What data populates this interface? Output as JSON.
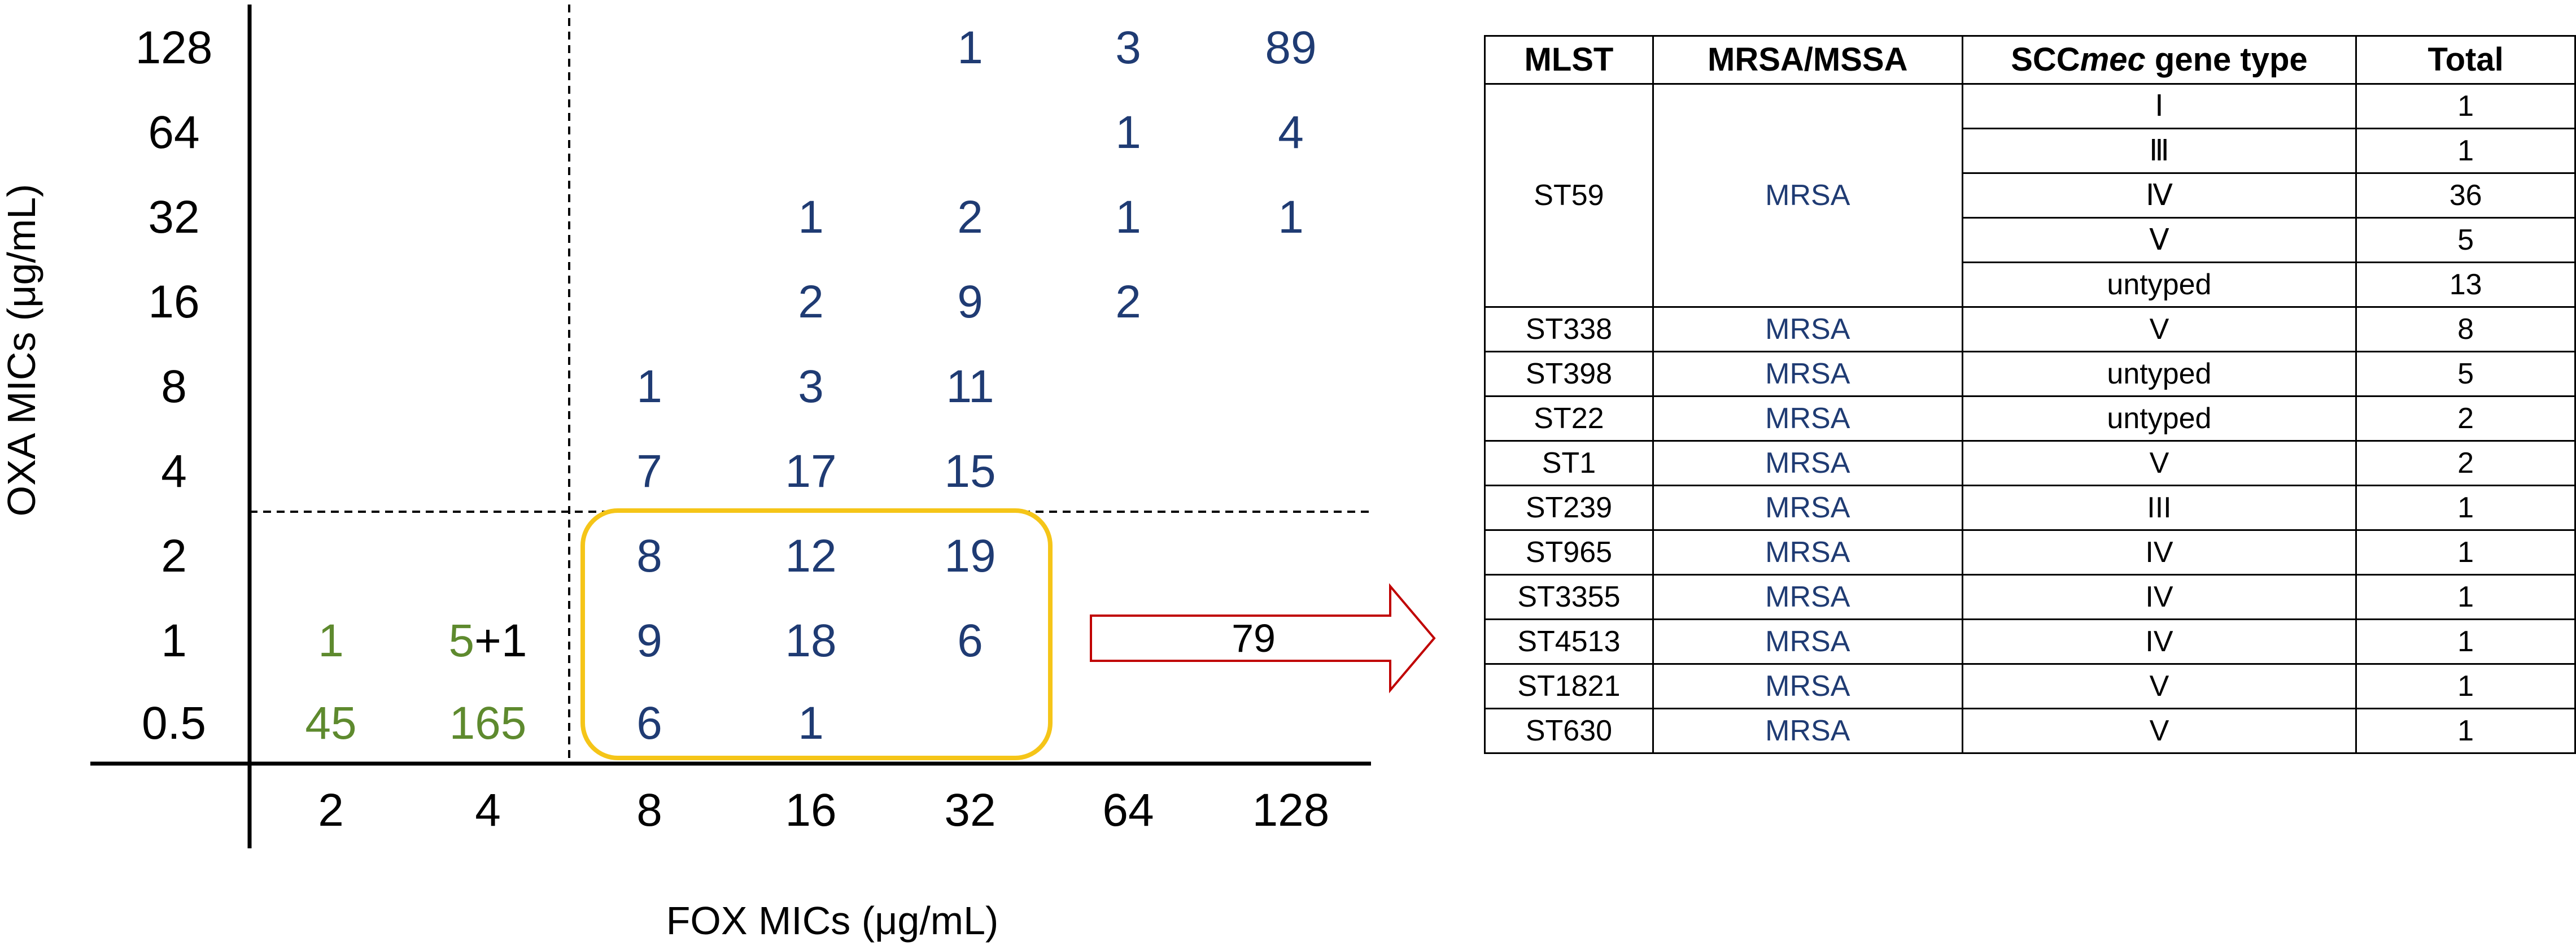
{
  "chart_data": {
    "type": "table",
    "xlabel": "FOX MICs (μg/mL)",
    "ylabel": "OXA MICs (μg/mL)",
    "x_ticks": [
      "2",
      "4",
      "8",
      "16",
      "32",
      "64",
      "128"
    ],
    "y_ticks": [
      "128",
      "64",
      "32",
      "16",
      "8",
      "4",
      "2",
      "1",
      "0.5"
    ],
    "cells": [
      {
        "x": "32",
        "y": "128",
        "text": "1",
        "group": "blue"
      },
      {
        "x": "64",
        "y": "128",
        "text": "3",
        "group": "blue"
      },
      {
        "x": "128",
        "y": "128",
        "text": "89",
        "group": "blue"
      },
      {
        "x": "64",
        "y": "64",
        "text": "1",
        "group": "blue"
      },
      {
        "x": "128",
        "y": "64",
        "text": "4",
        "group": "blue"
      },
      {
        "x": "16",
        "y": "32",
        "text": "1",
        "group": "blue"
      },
      {
        "x": "32",
        "y": "32",
        "text": "2",
        "group": "blue"
      },
      {
        "x": "64",
        "y": "32",
        "text": "1",
        "group": "blue"
      },
      {
        "x": "128",
        "y": "32",
        "text": "1",
        "group": "blue"
      },
      {
        "x": "16",
        "y": "16",
        "text": "2",
        "group": "blue"
      },
      {
        "x": "32",
        "y": "16",
        "text": "9",
        "group": "blue"
      },
      {
        "x": "64",
        "y": "16",
        "text": "2",
        "group": "blue"
      },
      {
        "x": "8",
        "y": "8",
        "text": "1",
        "group": "blue"
      },
      {
        "x": "16",
        "y": "8",
        "text": "3",
        "group": "blue"
      },
      {
        "x": "32",
        "y": "8",
        "text": "11",
        "group": "blue"
      },
      {
        "x": "8",
        "y": "4",
        "text": "7",
        "group": "blue"
      },
      {
        "x": "16",
        "y": "4",
        "text": "17",
        "group": "blue"
      },
      {
        "x": "32",
        "y": "4",
        "text": "15",
        "group": "blue"
      },
      {
        "x": "8",
        "y": "2",
        "text": "8",
        "group": "blue"
      },
      {
        "x": "16",
        "y": "2",
        "text": "12",
        "group": "blue"
      },
      {
        "x": "32",
        "y": "2",
        "text": "19",
        "group": "blue"
      },
      {
        "x": "2",
        "y": "1",
        "text": "1",
        "group": "green"
      },
      {
        "x": "4",
        "y": "1",
        "text": "5",
        "group": "green",
        "suffix": "+1"
      },
      {
        "x": "8",
        "y": "1",
        "text": "9",
        "group": "blue"
      },
      {
        "x": "16",
        "y": "1",
        "text": "18",
        "group": "blue"
      },
      {
        "x": "32",
        "y": "1",
        "text": "6",
        "group": "blue"
      },
      {
        "x": "2",
        "y": "0.5",
        "text": "45",
        "group": "green"
      },
      {
        "x": "4",
        "y": "0.5",
        "text": "165",
        "group": "green"
      },
      {
        "x": "8",
        "y": "0.5",
        "text": "6",
        "group": "blue"
      },
      {
        "x": "16",
        "y": "0.5",
        "text": "1",
        "group": "blue"
      }
    ],
    "highlight_box": {
      "x_from": "8",
      "x_to": "32",
      "y_from": "2",
      "y_to": "0.5",
      "color": "#f5c518"
    },
    "arrow_label": "79",
    "arrow_color": "#c00000",
    "colors": {
      "blue": "#1f3b73",
      "green": "#5e8a2e",
      "black": "#000000"
    }
  },
  "table": {
    "headers": [
      {
        "text": "MLST"
      },
      {
        "text": "MRSA/MSSA"
      },
      {
        "pre": "SCC",
        "em": "mec",
        "post": " gene type"
      },
      {
        "text": "Total"
      }
    ],
    "groups": [
      {
        "mlst": "ST59",
        "ms": "MRSA",
        "rows": [
          {
            "type": "Ⅰ",
            "total": "1"
          },
          {
            "type": "Ⅲ",
            "total": "1"
          },
          {
            "type": "Ⅳ",
            "total": "36"
          },
          {
            "type": "Ⅴ",
            "total": "5"
          },
          {
            "type": "untyped",
            "total": "13"
          }
        ]
      },
      {
        "mlst": "ST338",
        "ms": "MRSA",
        "rows": [
          {
            "type": "V",
            "total": "8"
          }
        ]
      },
      {
        "mlst": "ST398",
        "ms": "MRSA",
        "rows": [
          {
            "type": "untyped",
            "total": "5"
          }
        ]
      },
      {
        "mlst": "ST22",
        "ms": "MRSA",
        "rows": [
          {
            "type": "untyped",
            "total": "2"
          }
        ]
      },
      {
        "mlst": "ST1",
        "ms": "MRSA",
        "rows": [
          {
            "type": "V",
            "total": "2"
          }
        ]
      },
      {
        "mlst": "ST239",
        "ms": "MRSA",
        "rows": [
          {
            "type": "III",
            "total": "1"
          }
        ]
      },
      {
        "mlst": "ST965",
        "ms": "MRSA",
        "rows": [
          {
            "type": "IV",
            "total": "1"
          }
        ]
      },
      {
        "mlst": "ST3355",
        "ms": "MRSA",
        "rows": [
          {
            "type": "IV",
            "total": "1"
          }
        ]
      },
      {
        "mlst": "ST4513",
        "ms": "MRSA",
        "rows": [
          {
            "type": "IV",
            "total": "1"
          }
        ]
      },
      {
        "mlst": "ST1821",
        "ms": "MRSA",
        "rows": [
          {
            "type": "V",
            "total": "1"
          }
        ]
      },
      {
        "mlst": "ST630",
        "ms": "MRSA",
        "rows": [
          {
            "type": "V",
            "total": "1"
          }
        ]
      }
    ]
  }
}
